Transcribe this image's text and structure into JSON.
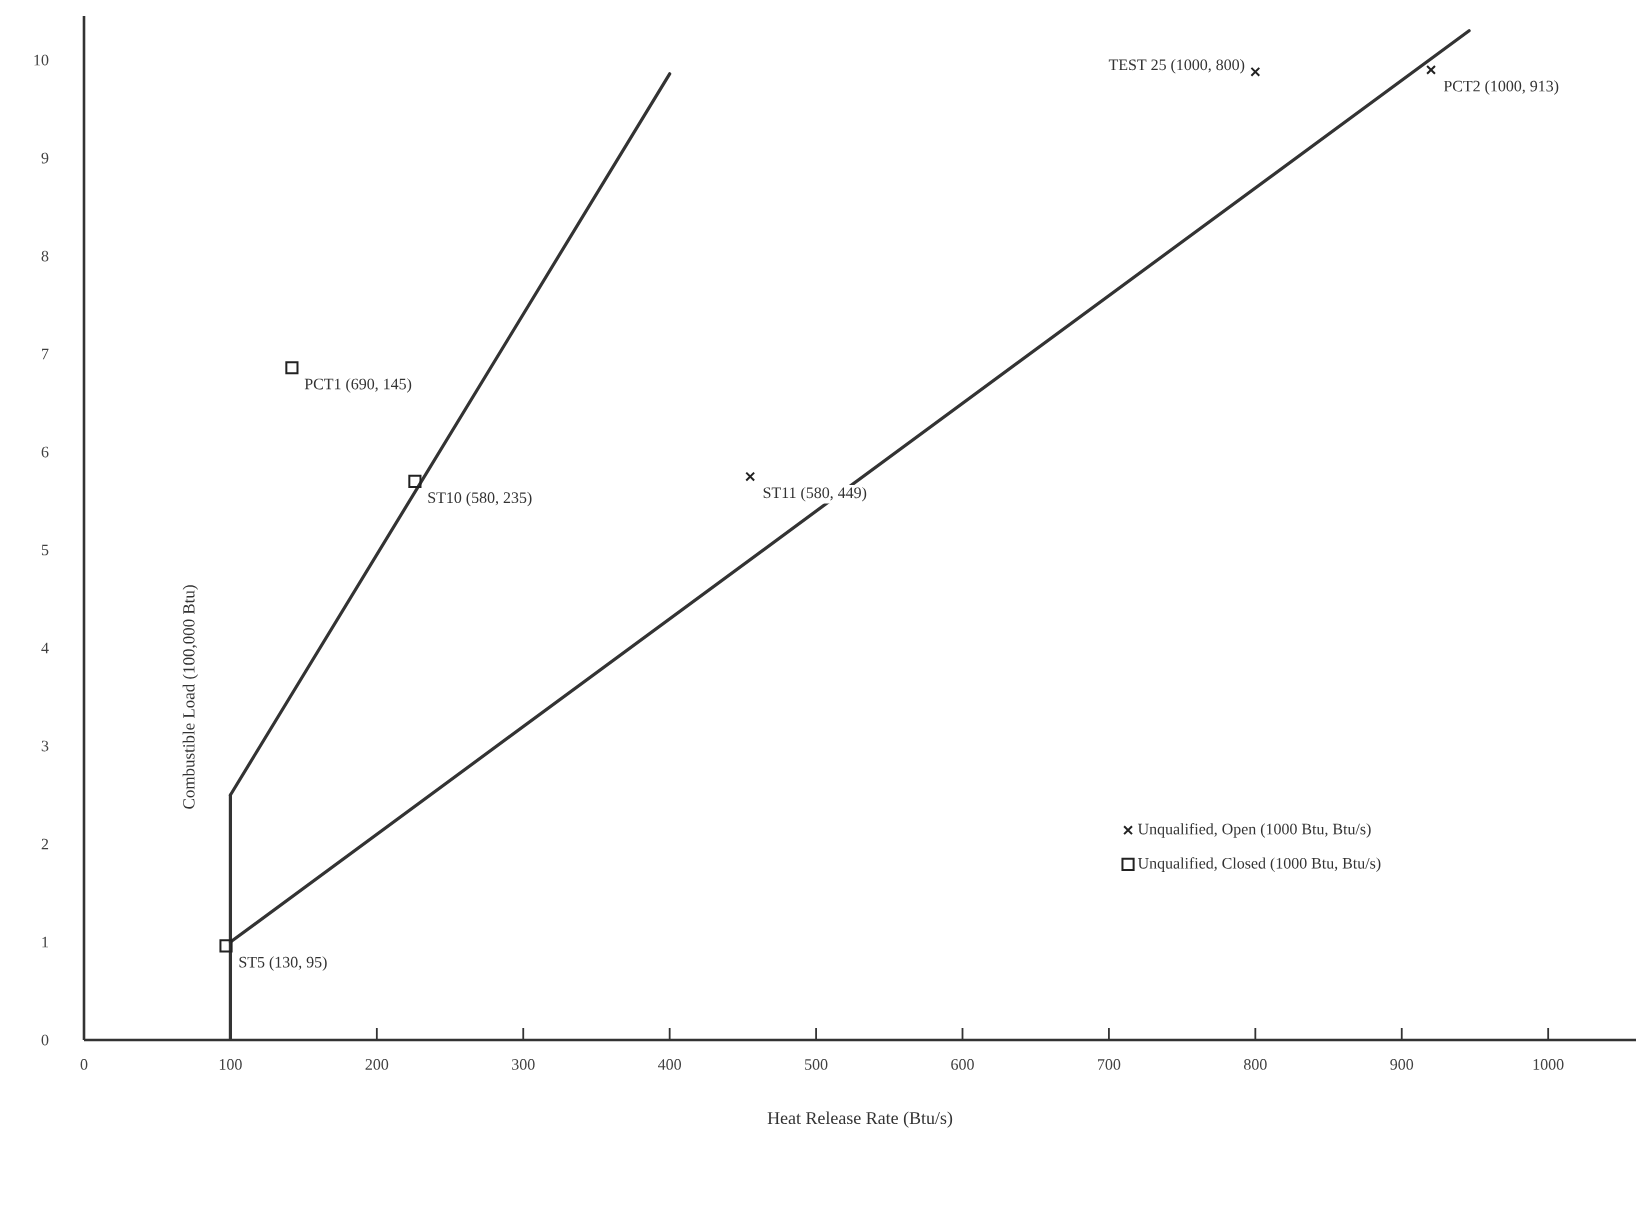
{
  "chart_data": {
    "type": "scatter",
    "xlabel": "Heat Release Rate (Btu/s)",
    "ylabel": "Combustible Load (100,000 Btu)",
    "xlim": [
      0,
      1060
    ],
    "ylim": [
      0,
      10.45
    ],
    "xticks": [
      0,
      100,
      200,
      300,
      400,
      500,
      600,
      700,
      800,
      900,
      1000
    ],
    "yticks": [
      0,
      1,
      2,
      3,
      4,
      5,
      6,
      7,
      8,
      9,
      10
    ],
    "grid": false,
    "legend": "bottom right",
    "series": [
      {
        "type": "line",
        "color": "#333333",
        "marker": "none",
        "x": [
          100,
          400
        ],
        "values": [
          2.5,
          9.86
        ]
      },
      {
        "type": "line",
        "color": "#333333",
        "marker": "none",
        "x": [
          100,
          946
        ],
        "values": [
          1.0,
          10.3
        ]
      },
      {
        "type": "line",
        "color": "#333333",
        "marker": "none",
        "x": [
          100,
          100
        ],
        "values": [
          0,
          2.5
        ]
      },
      {
        "name": "Unqualified, Open (1000 Btu, Btu/s)",
        "color": "#222222",
        "marker": "cross",
        "x": [
          455,
          800,
          920
        ],
        "values": [
          5.75,
          9.88,
          9.9
        ]
      },
      {
        "name": "Unqualified, Closed (1000 Btu, Btu/s)",
        "color": "#222222",
        "marker": "square",
        "x": [
          142,
          226,
          97
        ],
        "values": [
          6.86,
          5.7,
          0.96
        ]
      }
    ],
    "annotations": [
      {
        "text": "PCT1 (690, 145)",
        "x": 142,
        "y": 6.86
      },
      {
        "text": "ST10 (580, 235)",
        "x": 226,
        "y": 5.7
      },
      {
        "text": "ST11 (580, 449)",
        "x": 455,
        "y": 5.75
      },
      {
        "text": "TEST 25 (1000, 800)",
        "x": 800,
        "y": 9.88
      },
      {
        "text": "PCT2 (1000, 913)",
        "x": 920,
        "y": 9.9
      },
      {
        "text": "ST5 (130, 95)",
        "x": 97,
        "y": 0.96
      }
    ]
  }
}
